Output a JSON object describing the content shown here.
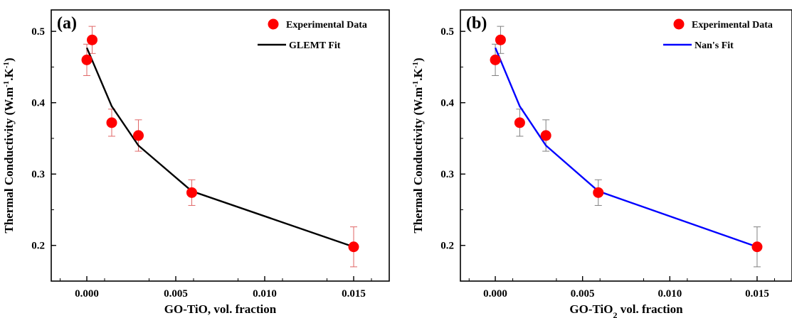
{
  "chart_data": [
    {
      "type": "scatter",
      "panel_label": "(a)",
      "xlabel": "GO-TiO, vol. fraction",
      "xlabel_sub": "",
      "xlabel_rest": "",
      "ylabel": "Thermal Conductivity (W.m",
      "ylabel_sup1": "-1",
      "ylabel_mid": ".K",
      "ylabel_sup2": "-1",
      "ylabel_end": ")",
      "xlim": [
        -0.002,
        0.017
      ],
      "ylim": [
        0.15,
        0.53
      ],
      "x_ticks": [
        0.0,
        0.005,
        0.01,
        0.015
      ],
      "x_tick_labels": [
        "0.000",
        "0.005",
        "0.010",
        "0.015"
      ],
      "y_ticks": [
        0.2,
        0.3,
        0.4,
        0.5
      ],
      "y_tick_labels": [
        "0.2",
        "0.3",
        "0.4",
        "0.5"
      ],
      "grid": false,
      "legend_position": "top-right",
      "series": [
        {
          "name": "Experimental Data",
          "kind": "scatter",
          "color": "#ff0000",
          "errorbar_color": "#e06666",
          "points": [
            {
              "x": 0.0,
              "y": 0.46,
              "err": 0.022
            },
            {
              "x": 0.0003,
              "y": 0.488,
              "err": 0.019
            },
            {
              "x": 0.0014,
              "y": 0.372,
              "err": 0.019
            },
            {
              "x": 0.0029,
              "y": 0.354,
              "err": 0.022
            },
            {
              "x": 0.0059,
              "y": 0.274,
              "err": 0.018
            },
            {
              "x": 0.015,
              "y": 0.198,
              "err": 0.028
            }
          ]
        },
        {
          "name": "GLEMT Fit",
          "kind": "line",
          "color": "#000000",
          "points": [
            {
              "x": 0.0,
              "y": 0.477
            },
            {
              "x": 0.0014,
              "y": 0.395
            },
            {
              "x": 0.0029,
              "y": 0.34
            },
            {
              "x": 0.0059,
              "y": 0.276
            },
            {
              "x": 0.015,
              "y": 0.198
            }
          ]
        }
      ]
    },
    {
      "type": "scatter",
      "panel_label": "(b)",
      "xlabel": "GO-TiO",
      "xlabel_sub": "2",
      "xlabel_rest": " vol. fraction",
      "ylabel": "Thermal Conductivity (W.m",
      "ylabel_sup1": "-1",
      "ylabel_mid": ".K",
      "ylabel_sup2": "-1",
      "ylabel_end": ")",
      "xlim": [
        -0.002,
        0.017
      ],
      "ylim": [
        0.15,
        0.53
      ],
      "x_ticks": [
        0.0,
        0.005,
        0.01,
        0.015
      ],
      "x_tick_labels": [
        "0.000",
        "0.005",
        "0.010",
        "0.015"
      ],
      "y_ticks": [
        0.2,
        0.3,
        0.4,
        0.5
      ],
      "y_tick_labels": [
        "0.2",
        "0.3",
        "0.4",
        "0.5"
      ],
      "grid": false,
      "legend_position": "top-right",
      "series": [
        {
          "name": "Experimental Data",
          "kind": "scatter",
          "color": "#ff0000",
          "errorbar_color": "#808080",
          "points": [
            {
              "x": 0.0,
              "y": 0.46,
              "err": 0.022
            },
            {
              "x": 0.0003,
              "y": 0.488,
              "err": 0.019
            },
            {
              "x": 0.0014,
              "y": 0.372,
              "err": 0.019
            },
            {
              "x": 0.0029,
              "y": 0.354,
              "err": 0.022
            },
            {
              "x": 0.0059,
              "y": 0.274,
              "err": 0.018
            },
            {
              "x": 0.015,
              "y": 0.198,
              "err": 0.028
            }
          ]
        },
        {
          "name": "Nan's Fit",
          "kind": "line",
          "color": "#0000ff",
          "points": [
            {
              "x": 0.0,
              "y": 0.477
            },
            {
              "x": 0.0014,
              "y": 0.395
            },
            {
              "x": 0.0029,
              "y": 0.34
            },
            {
              "x": 0.0059,
              "y": 0.276
            },
            {
              "x": 0.015,
              "y": 0.198
            }
          ]
        }
      ]
    }
  ]
}
